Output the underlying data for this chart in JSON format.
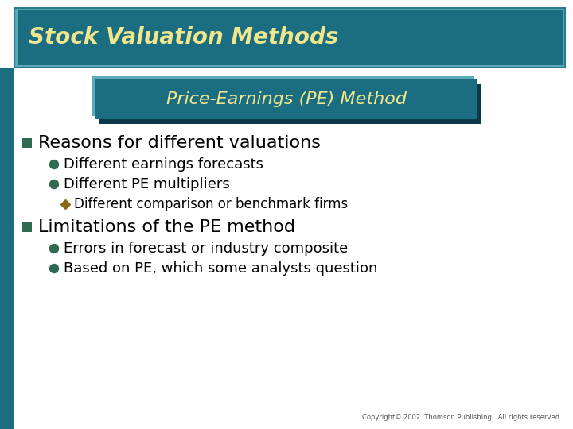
{
  "title": "Stock Valuation Methods",
  "title_color": "#F0E68C",
  "title_bg": "#1B6E82",
  "title_border": "#5AABB8",
  "subtitle": "Price-Earnings (PE) Method",
  "subtitle_color": "#F0E68C",
  "subtitle_bg": "#1B6E82",
  "subtitle_bevel_light": "#5AABB8",
  "subtitle_bevel_dark": "#0A3A48",
  "slide_bg": "#FFFFFF",
  "left_bar_color": "#1B6E82",
  "bullet_sq_color": "#2E6B50",
  "bullet_circle_color": "#2E6B50",
  "diamond_color": "#8B6914",
  "main_bullets": [
    "Reasons for different valuations",
    "Limitations of the PE method"
  ],
  "sub_bullets_1": [
    "Different earnings forecasts",
    "Different PE multipliers"
  ],
  "sub_sub_bullets_1": [
    "Different comparison or benchmark firms"
  ],
  "sub_bullets_2": [
    "Errors in forecast or industry composite",
    "Based on PE, which some analysts question"
  ],
  "copyright": "Copyright© 2002  Thomson Publishing.  All rights reserved.",
  "main_bullet_fontsize": 16,
  "sub_bullet_fontsize": 13,
  "sub_sub_bullet_fontsize": 12,
  "title_fontsize": 20,
  "subtitle_fontsize": 16
}
